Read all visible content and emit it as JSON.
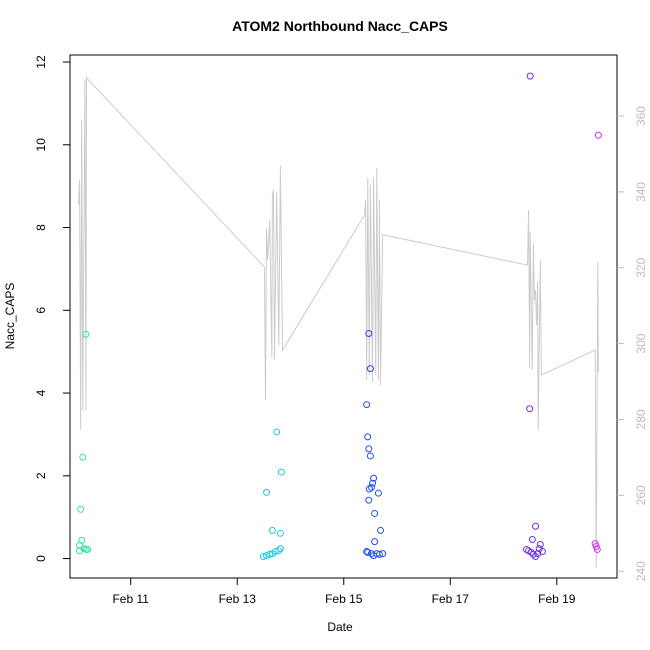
{
  "chart_data": {
    "type": "scatter",
    "title": "ATOM2 Northbound Nacc_CAPS",
    "x_label": "Date",
    "y_label": "Nacc_CAPS",
    "xlim": [
      9.86,
      20.13
    ],
    "xticks": [
      {
        "value": 11,
        "label": "Feb 11"
      },
      {
        "value": 13,
        "label": "Feb 13"
      },
      {
        "value": 15,
        "label": "Feb 15"
      },
      {
        "value": 17,
        "label": "Feb 17"
      },
      {
        "value": 19,
        "label": "Feb 19"
      }
    ],
    "ylim": [
      -0.47,
      12.17
    ],
    "yticks": [
      0,
      2,
      4,
      6,
      8,
      10,
      12
    ],
    "y2lim": [
      238.2,
      376.1
    ],
    "y2ticks": [
      240,
      260,
      280,
      300,
      320,
      340,
      360
    ],
    "series": [
      {
        "color": "#2ee6a8",
        "x": [
          10.16,
          10.1,
          10.06,
          10.08,
          10.04,
          10.12,
          10.16,
          10.19,
          10.04
        ],
        "values": [
          5.42,
          2.45,
          1.19,
          0.44,
          0.32,
          0.24,
          0.22,
          0.22,
          0.19
        ]
      },
      {
        "color": "#1ec8e6",
        "x": [
          13.55,
          13.66,
          13.74,
          13.83,
          13.81,
          13.49,
          13.55,
          13.61,
          13.66,
          13.72,
          13.78,
          13.81
        ],
        "values": [
          1.6,
          0.68,
          3.06,
          2.09,
          0.61,
          0.05,
          0.07,
          0.1,
          0.12,
          0.17,
          0.19,
          0.24
        ]
      },
      {
        "color": "#2050f0",
        "x": [
          15.47,
          15.5,
          15.43,
          15.45,
          15.47,
          15.5,
          15.56,
          15.54,
          15.52,
          15.48,
          15.47,
          15.65,
          15.58,
          15.69,
          15.58,
          15.43,
          15.52,
          15.62,
          15.67,
          15.73,
          15.56,
          15.45
        ],
        "values": [
          5.44,
          4.59,
          3.72,
          2.94,
          2.65,
          2.48,
          1.94,
          1.82,
          1.72,
          1.68,
          1.41,
          1.58,
          1.09,
          0.68,
          0.41,
          0.17,
          0.12,
          0.12,
          0.1,
          0.12,
          0.07,
          0.15
        ]
      },
      {
        "color": "#7030e0",
        "x": [
          18.5,
          18.49,
          18.54,
          18.6,
          18.69,
          18.43,
          18.47,
          18.52,
          18.56,
          18.6,
          18.64,
          18.67,
          18.73
        ],
        "values": [
          11.66,
          3.62,
          0.46,
          0.78,
          0.34,
          0.22,
          0.19,
          0.15,
          0.1,
          0.05,
          0.12,
          0.24,
          0.17
        ]
      },
      {
        "color": "#d030f0",
        "x": [
          19.78,
          19.72,
          19.74,
          19.76
        ],
        "values": [
          10.23,
          0.36,
          0.29,
          0.22
        ]
      },
      {
        "type": "line",
        "axis": "y2",
        "color": "#cccccc",
        "x": [
          10.02,
          10.04,
          10.06,
          10.08,
          10.1,
          10.14,
          10.16,
          10.17,
          13.51,
          13.53,
          13.55,
          13.57,
          13.61,
          13.65,
          13.66,
          13.68,
          13.7,
          13.74,
          13.78,
          13.81,
          13.85,
          15.39,
          15.41,
          15.43,
          15.45,
          15.48,
          15.5,
          15.54,
          15.56,
          15.6,
          15.62,
          15.65,
          15.67,
          15.69,
          15.73,
          18.45,
          18.47,
          18.49,
          18.5,
          18.54,
          18.56,
          18.58,
          18.6,
          18.62,
          18.64,
          18.65,
          18.69,
          18.71,
          19.72,
          19.74,
          19.77,
          19.78
        ],
        "values": [
          336.6,
          343.2,
          277.2,
          359.0,
          282.5,
          369.6,
          282.5,
          370.1,
          320.2,
          285.1,
          330.5,
          322.1,
          332.6,
          296.2,
          339.2,
          340.5,
          295.7,
          340.0,
          299.6,
          347.1,
          298.3,
          333.9,
          337.9,
          290.4,
          343.7,
          291.7,
          341.8,
          289.9,
          343.7,
          291.7,
          346.3,
          290.4,
          337.9,
          289.1,
          328.7,
          320.7,
          335.3,
          293.6,
          329.4,
          293.0,
          326.5,
          311.5,
          314.1,
          304.9,
          316.3,
          277.2,
          322.1,
          291.7,
          298.3,
          240.8,
          321.5,
          292.5
        ]
      }
    ]
  }
}
